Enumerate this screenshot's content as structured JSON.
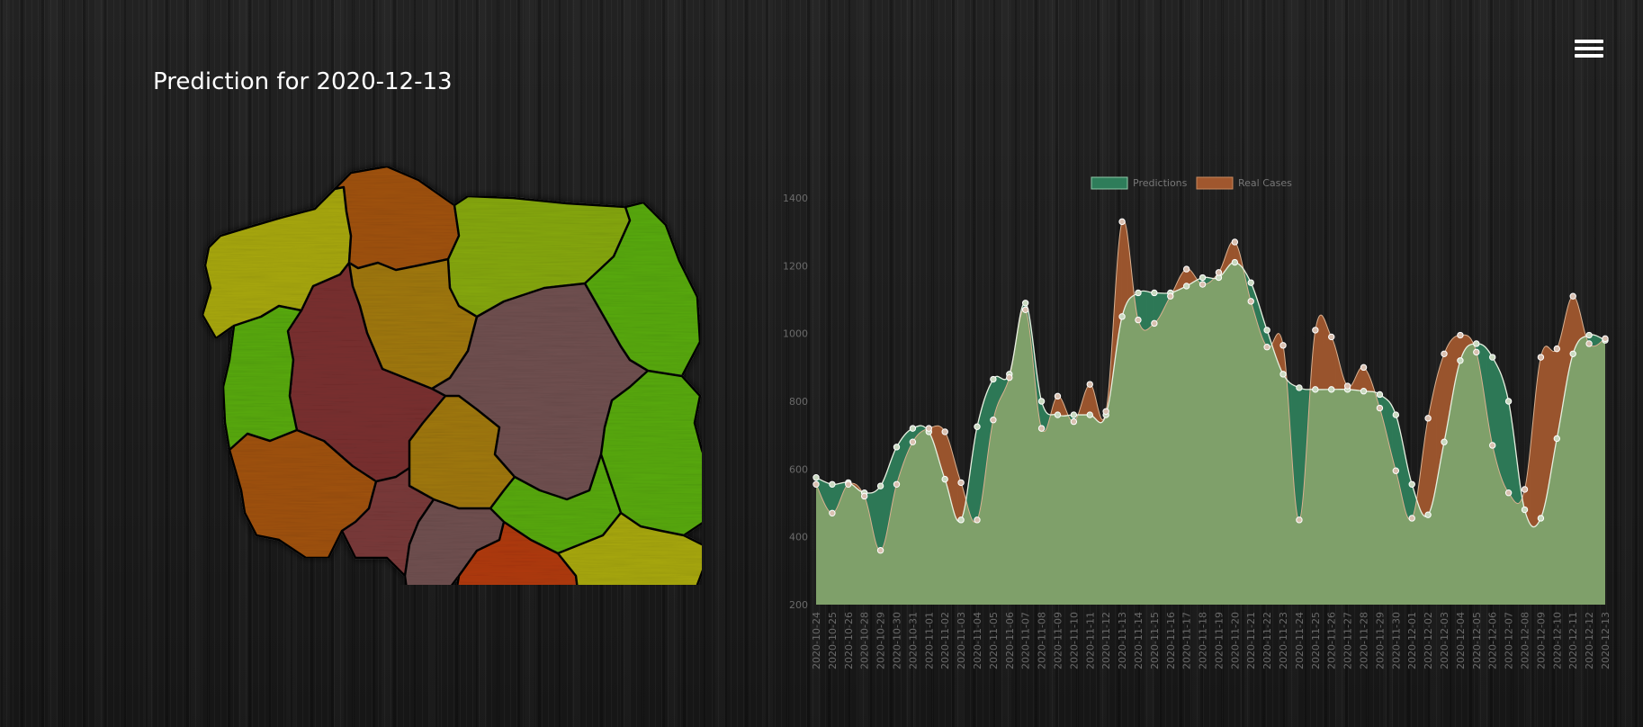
{
  "header": {
    "title": "Prediction for 2020-12-13"
  },
  "menu": {
    "icon": "hamburger-menu-icon"
  },
  "map": {
    "regions": [
      {
        "id": "zachodniopomorskie",
        "color": "#a8a80c"
      },
      {
        "id": "pomorskie",
        "color": "#a0520c"
      },
      {
        "id": "warminsko-mazurskie",
        "color": "#86a80c"
      },
      {
        "id": "podlaskie",
        "color": "#58aa0c"
      },
      {
        "id": "kujawsko-pomorskie",
        "color": "#a0780c"
      },
      {
        "id": "wielkopolskie",
        "color": "#7a3030"
      },
      {
        "id": "lubuskie",
        "color": "#58aa0c"
      },
      {
        "id": "mazowieckie",
        "color": "#705050"
      },
      {
        "id": "lodzkie",
        "color": "#a0780c"
      },
      {
        "id": "lubelskie",
        "color": "#58aa0c"
      },
      {
        "id": "dolnoslaskie",
        "color": "#a0520c"
      },
      {
        "id": "opolskie",
        "color": "#7a3a3a"
      },
      {
        "id": "slaskie",
        "color": "#705050"
      },
      {
        "id": "swietokrzyskie",
        "color": "#58aa0c"
      },
      {
        "id": "malopolskie",
        "color": "#b03a0c"
      },
      {
        "id": "podkarpackie",
        "color": "#a8a80c"
      }
    ]
  },
  "chart_data": {
    "type": "area",
    "legend": {
      "position": "top",
      "entries": [
        "Predictions",
        "Real Cases"
      ]
    },
    "colors": {
      "predictions": "#2e7d5a",
      "real_cases": "#a0572e",
      "overlap": "#7fa06a"
    },
    "ylim": [
      200,
      1400
    ],
    "yticks": [
      200,
      400,
      600,
      800,
      1000,
      1200,
      1400
    ],
    "x": [
      "2020-10-24",
      "2020-10-25",
      "2020-10-26",
      "2020-10-28",
      "2020-10-29",
      "2020-10-30",
      "2020-10-31",
      "2020-11-01",
      "2020-11-02",
      "2020-11-03",
      "2020-11-04",
      "2020-11-05",
      "2020-11-06",
      "2020-11-07",
      "2020-11-08",
      "2020-11-09",
      "2020-11-10",
      "2020-11-11",
      "2020-11-12",
      "2020-11-13",
      "2020-11-14",
      "2020-11-15",
      "2020-11-16",
      "2020-11-17",
      "2020-11-18",
      "2020-11-19",
      "2020-11-20",
      "2020-11-21",
      "2020-11-22",
      "2020-11-23",
      "2020-11-24",
      "2020-11-25",
      "2020-11-26",
      "2020-11-27",
      "2020-11-28",
      "2020-11-29",
      "2020-11-30",
      "2020-12-01",
      "2020-12-02",
      "2020-12-03",
      "2020-12-04",
      "2020-12-05",
      "2020-12-06",
      "2020-12-07",
      "2020-12-08",
      "2020-12-09",
      "2020-12-10",
      "2020-12-11",
      "2020-12-12",
      "2020-12-13"
    ],
    "series": [
      {
        "name": "Predictions",
        "values": [
          575,
          555,
          560,
          530,
          550,
          665,
          720,
          710,
          570,
          450,
          725,
          865,
          880,
          1090,
          800,
          760,
          760,
          760,
          760,
          1050,
          1120,
          1120,
          1120,
          1140,
          1165,
          1165,
          1210,
          1150,
          1010,
          880,
          840,
          835,
          835,
          835,
          830,
          820,
          760,
          555,
          465,
          680,
          920,
          970,
          930,
          800,
          480,
          455,
          690,
          940,
          995,
          980
        ]
      },
      {
        "name": "Real Cases",
        "values": [
          555,
          470,
          555,
          520,
          360,
          555,
          680,
          720,
          710,
          560,
          450,
          745,
          870,
          1070,
          720,
          815,
          740,
          850,
          770,
          1330,
          1040,
          1030,
          1110,
          1190,
          1145,
          1180,
          1270,
          1095,
          960,
          965,
          450,
          1010,
          990,
          845,
          900,
          780,
          595,
          455,
          750,
          940,
          995,
          945,
          670,
          530,
          540,
          930,
          955,
          1110,
          970,
          985
        ]
      }
    ]
  }
}
